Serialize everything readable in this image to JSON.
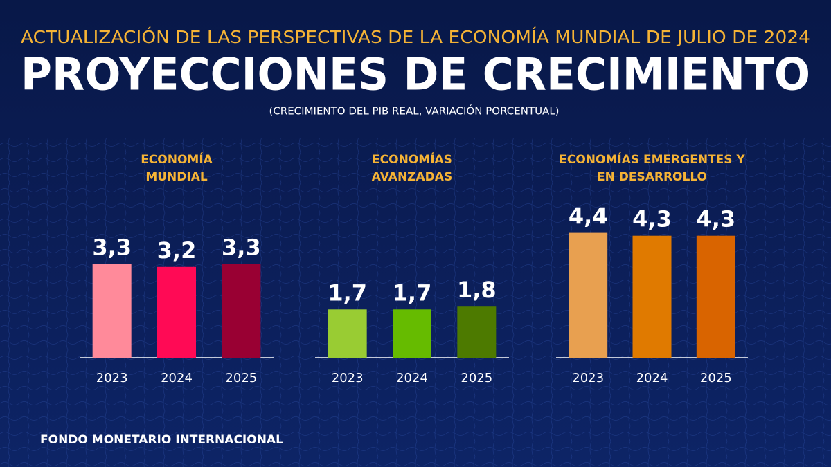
{
  "header": {
    "kicker": "ACTUALIZACIÓN DE LAS PERSPECTIVAS DE LA ECONOMÍA MUNDIAL DE JULIO DE 2024",
    "title": "PROYECCIONES DE CRECIMIENTO",
    "note": "(CRECIMIENTO DEL PIB REAL, VARIACIÓN PORCENTUAL)"
  },
  "footer": "FONDO MONETARIO INTERNACIONAL",
  "chart_data": [
    {
      "type": "bar",
      "title": [
        "ECONOMÍA",
        "MUNDIAL"
      ],
      "categories": [
        "2023",
        "2024",
        "2025"
      ],
      "values": [
        3.3,
        3.2,
        3.3
      ],
      "value_labels": [
        "3,3",
        "3,2",
        "3,3"
      ],
      "colors": [
        "#ff8a9a",
        "#ff0a55",
        "#990033"
      ]
    },
    {
      "type": "bar",
      "title": [
        "ECONOMÍAS",
        "AVANZADAS"
      ],
      "categories": [
        "2023",
        "2024",
        "2025"
      ],
      "values": [
        1.7,
        1.7,
        1.8
      ],
      "value_labels": [
        "1,7",
        "1,7",
        "1,8"
      ],
      "colors": [
        "#99cc33",
        "#66bb00",
        "#4d7a00"
      ]
    },
    {
      "type": "bar",
      "title": [
        "ECONOMÍAS EMERGENTES Y",
        "EN DESARROLLO"
      ],
      "categories": [
        "2023",
        "2024",
        "2025"
      ],
      "values": [
        4.4,
        4.3,
        4.3
      ],
      "value_labels": [
        "4,4",
        "4,3",
        "4,3"
      ],
      "colors": [
        "#e8a050",
        "#e07a00",
        "#d96400"
      ]
    }
  ]
}
